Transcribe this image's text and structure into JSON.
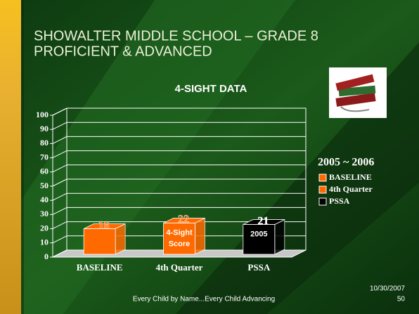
{
  "slide": {
    "title_lines": [
      "SHOWALTER MIDDLE SCHOOL – GRADE 8",
      "PROFICIENT & ADVANCED"
    ],
    "footer": "Every Child by Name...Every Child Advancing",
    "date": "10/30/2007",
    "page": "50"
  },
  "chart_data": {
    "type": "bar3d",
    "title": "4-SIGHT DATA",
    "categories": [
      "BASELINE",
      "4th Quarter",
      "PSSA"
    ],
    "values": [
      18,
      22,
      21
    ],
    "colors": [
      "#ff6a00",
      "#ff6a00",
      "#000000"
    ],
    "bar_labels": [
      null,
      [
        "4-Sight",
        "Score"
      ],
      [
        "2005"
      ]
    ],
    "ylim": [
      0,
      100
    ],
    "yticks": [
      0,
      10,
      20,
      30,
      40,
      50,
      60,
      70,
      80,
      90,
      100
    ],
    "grid": true,
    "legend_title": "2005 ~ 2006",
    "legend": "right"
  }
}
